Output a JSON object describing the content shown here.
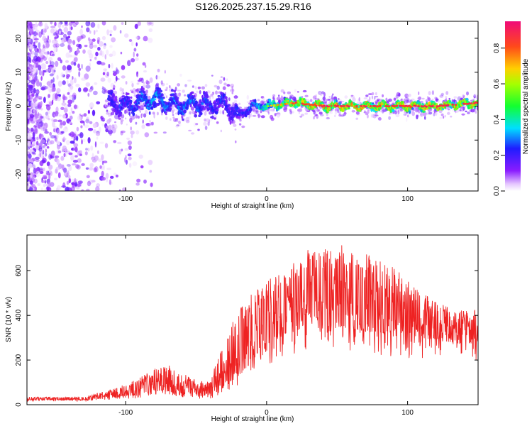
{
  "title": "S126.2025.237.15.29.R16",
  "chart_data": [
    {
      "type": "heatmap",
      "name": "spectrogram",
      "xlabel": "Height of straight line (km)",
      "ylabel": "Frequency (Hz)",
      "xlim": [
        -170,
        150
      ],
      "ylim": [
        -25,
        25
      ],
      "xticks": [
        -100,
        0,
        100
      ],
      "yticks": [
        -20,
        -10,
        0,
        10,
        20
      ],
      "colorbar": {
        "label": "Normalized spectral amplitude",
        "range": [
          0.0,
          0.95
        ],
        "ticks": [
          0.0,
          0.2,
          0.4,
          0.6,
          0.8
        ],
        "tick_labels": [
          "0.0",
          "0.2",
          "0.4",
          "0.6",
          "0.8"
        ],
        "colormap": "rainbow (white-violet-blue-cyan-green-yellow-orange-red-magenta)"
      },
      "signal_band": {
        "description": "narrow signal line near 0 Hz, noisy for heights below about -20 km",
        "x": [
          -110,
          -100,
          -90,
          -80,
          -70,
          -60,
          -50,
          -40,
          -30,
          -20,
          -10,
          0,
          20,
          40,
          60,
          80,
          100,
          120,
          150
        ],
        "center_hz": [
          1,
          0,
          1,
          2,
          1,
          0,
          1,
          0,
          1,
          -3,
          0,
          0,
          1,
          0,
          0,
          0,
          0,
          0,
          1
        ],
        "peak_amplitude": [
          0.3,
          0.3,
          0.35,
          0.4,
          0.35,
          0.35,
          0.35,
          0.3,
          0.3,
          0.3,
          0.35,
          0.6,
          0.8,
          0.85,
          0.9,
          0.85,
          0.85,
          0.9,
          0.85
        ]
      }
    },
    {
      "type": "line",
      "name": "snr",
      "color": "#ee2222",
      "xlabel": "Height of straight line (km)",
      "ylabel": "SNR (10 * v/v)",
      "xlim": [
        -170,
        150
      ],
      "ylim": [
        0,
        760
      ],
      "xticks": [
        -100,
        0,
        100
      ],
      "yticks": [
        0,
        200,
        400,
        600
      ],
      "envelope": {
        "x": [
          -170,
          -130,
          -115,
          -100,
          -90,
          -80,
          -70,
          -60,
          -50,
          -40,
          -35,
          -30,
          -25,
          -20,
          -15,
          -10,
          0,
          10,
          20,
          30,
          40,
          50,
          60,
          70,
          80,
          90,
          100,
          110,
          120,
          130,
          140,
          150
        ],
        "low": [
          20,
          20,
          30,
          40,
          40,
          60,
          60,
          50,
          40,
          40,
          60,
          80,
          100,
          130,
          160,
          200,
          250,
          300,
          330,
          350,
          350,
          350,
          340,
          330,
          320,
          310,
          300,
          300,
          290,
          280,
          270,
          280
        ],
        "high": [
          35,
          35,
          60,
          90,
          120,
          160,
          180,
          140,
          110,
          100,
          210,
          260,
          380,
          420,
          460,
          500,
          560,
          600,
          640,
          700,
          700,
          720,
          700,
          680,
          650,
          620,
          560,
          500,
          470,
          440,
          420,
          440
        ]
      }
    }
  ]
}
